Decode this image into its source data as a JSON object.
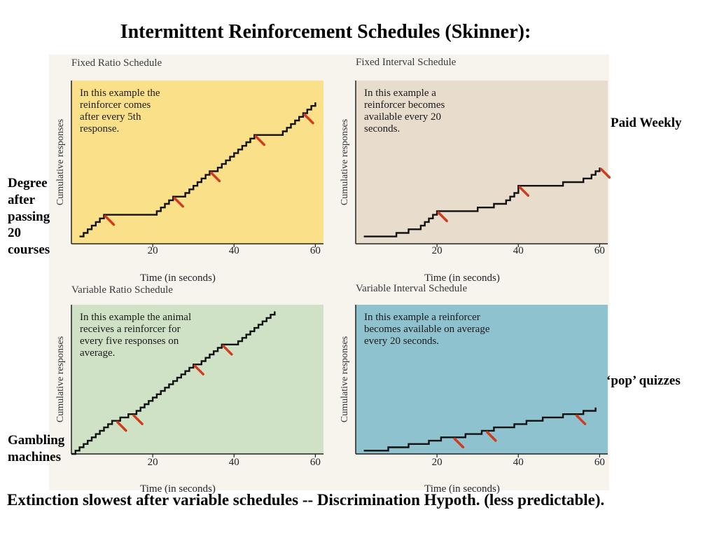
{
  "slide": {
    "title": "Intermittent Reinforcement Schedules (Skinner):",
    "annotations": {
      "paid_weekly": "Paid Weekly",
      "degree": [
        "Degree",
        "after",
        "passing",
        "20",
        "courses"
      ],
      "pop_quizzes": "‘pop’ quizzes",
      "gambling": [
        "Gambling",
        "machines"
      ]
    },
    "footer": "Extinction slowest after variable schedules -- Discrimination Hypoth. (less predictable)."
  },
  "colors": {
    "fixed_ratio_bg": "#fbe08a",
    "fixed_interval_bg": "#e8dccd",
    "variable_ratio_bg": "#cfe2c6",
    "variable_interval_bg": "#8fc2cf",
    "line": "#111111",
    "reinforcer": "#d23a1e"
  },
  "chart_data": [
    {
      "type": "line",
      "title": "Fixed Ratio Schedule",
      "xlabel": "Time (in seconds)",
      "ylabel": "Cumulative responses",
      "xticks": [
        20,
        40,
        60
      ],
      "xlim": [
        0,
        62
      ],
      "ylim": [
        0,
        45
      ],
      "annotation": "In this example the reinforcer comes after every 5th response.",
      "points": [
        [
          2,
          2
        ],
        [
          3,
          3
        ],
        [
          4,
          4
        ],
        [
          5,
          5
        ],
        [
          6,
          6
        ],
        [
          7,
          7
        ],
        [
          8,
          8
        ],
        [
          20,
          8
        ],
        [
          21,
          9
        ],
        [
          22,
          10
        ],
        [
          23,
          11
        ],
        [
          24,
          12
        ],
        [
          25,
          13
        ],
        [
          27,
          13
        ],
        [
          28,
          14
        ],
        [
          29,
          15
        ],
        [
          30,
          16
        ],
        [
          31,
          17
        ],
        [
          32,
          18
        ],
        [
          33,
          19
        ],
        [
          34,
          20
        ],
        [
          35,
          20
        ],
        [
          36,
          21
        ],
        [
          37,
          22
        ],
        [
          38,
          23
        ],
        [
          39,
          24
        ],
        [
          40,
          25
        ],
        [
          41,
          26
        ],
        [
          42,
          27
        ],
        [
          43,
          28
        ],
        [
          44,
          29
        ],
        [
          45,
          30
        ],
        [
          51,
          30
        ],
        [
          52,
          31
        ],
        [
          53,
          32
        ],
        [
          54,
          33
        ],
        [
          55,
          34
        ],
        [
          56,
          35
        ],
        [
          57,
          36
        ],
        [
          58,
          37
        ],
        [
          59,
          38
        ],
        [
          60,
          39
        ]
      ],
      "reinforcers": [
        8,
        25,
        34,
        45,
        57
      ]
    },
    {
      "type": "line",
      "title": "Fixed Interval Schedule",
      "xlabel": "Time (in seconds)",
      "ylabel": "Cumulative responses",
      "xticks": [
        20,
        40,
        60
      ],
      "xlim": [
        0,
        62
      ],
      "ylim": [
        0,
        45
      ],
      "annotation": "In this example a reinforcer becomes available every 20 seconds.",
      "points": [
        [
          2,
          2
        ],
        [
          9,
          2
        ],
        [
          10,
          3
        ],
        [
          12,
          3
        ],
        [
          13,
          4
        ],
        [
          15,
          4
        ],
        [
          16,
          5
        ],
        [
          17,
          6
        ],
        [
          18,
          7
        ],
        [
          19,
          8
        ],
        [
          20,
          9
        ],
        [
          29,
          9
        ],
        [
          30,
          10
        ],
        [
          33,
          10
        ],
        [
          34,
          11
        ],
        [
          36,
          11
        ],
        [
          37,
          12
        ],
        [
          38,
          13
        ],
        [
          39,
          14
        ],
        [
          40,
          16
        ],
        [
          50,
          16
        ],
        [
          51,
          17
        ],
        [
          55,
          17
        ],
        [
          56,
          18
        ],
        [
          58,
          19
        ],
        [
          59,
          20
        ],
        [
          60,
          21
        ]
      ],
      "reinforcers": [
        20,
        40,
        60
      ]
    },
    {
      "type": "line",
      "title": "Variable Ratio Schedule",
      "xlabel": "Time (in seconds)",
      "ylabel": "Cumulative responses",
      "xticks": [
        20,
        40,
        60
      ],
      "xlim": [
        0,
        62
      ],
      "ylim": [
        0,
        45
      ],
      "annotation": "In this example the animal receives a reinforcer for every five responses on average.",
      "points": [
        [
          0,
          0
        ],
        [
          1,
          1
        ],
        [
          2,
          2
        ],
        [
          3,
          3
        ],
        [
          4,
          4
        ],
        [
          5,
          5
        ],
        [
          6,
          6
        ],
        [
          7,
          7
        ],
        [
          8,
          8
        ],
        [
          9,
          9
        ],
        [
          10,
          10
        ],
        [
          11,
          10
        ],
        [
          12,
          11
        ],
        [
          13,
          11
        ],
        [
          14,
          12
        ],
        [
          15,
          12
        ],
        [
          16,
          13
        ],
        [
          17,
          14
        ],
        [
          18,
          15
        ],
        [
          19,
          16
        ],
        [
          20,
          17
        ],
        [
          21,
          18
        ],
        [
          22,
          19
        ],
        [
          23,
          20
        ],
        [
          24,
          21
        ],
        [
          25,
          22
        ],
        [
          26,
          23
        ],
        [
          27,
          24
        ],
        [
          28,
          25
        ],
        [
          29,
          26
        ],
        [
          30,
          27
        ],
        [
          31,
          27
        ],
        [
          32,
          28
        ],
        [
          33,
          29
        ],
        [
          34,
          30
        ],
        [
          35,
          31
        ],
        [
          36,
          32
        ],
        [
          37,
          33
        ],
        [
          40,
          33
        ],
        [
          41,
          34
        ],
        [
          42,
          35
        ],
        [
          43,
          36
        ],
        [
          44,
          37
        ],
        [
          45,
          38
        ],
        [
          46,
          39
        ],
        [
          47,
          40
        ],
        [
          48,
          41
        ],
        [
          49,
          42
        ],
        [
          50,
          43
        ]
      ],
      "reinforcers": [
        11,
        15,
        30,
        37
      ]
    },
    {
      "type": "line",
      "title": "Variable Interval Schedule",
      "xlabel": "Time (in seconds)",
      "ylabel": "Cumulative responses",
      "xticks": [
        20,
        40,
        60
      ],
      "xlim": [
        0,
        62
      ],
      "ylim": [
        0,
        45
      ],
      "annotation": "In this example a reinforcer becomes available on average every 20 seconds.",
      "points": [
        [
          2,
          1
        ],
        [
          7,
          1
        ],
        [
          8,
          2
        ],
        [
          12,
          2
        ],
        [
          13,
          3
        ],
        [
          17,
          3
        ],
        [
          18,
          4
        ],
        [
          20,
          4
        ],
        [
          21,
          5
        ],
        [
          26,
          5
        ],
        [
          27,
          6
        ],
        [
          30,
          6
        ],
        [
          31,
          7
        ],
        [
          33,
          7
        ],
        [
          34,
          8
        ],
        [
          38,
          8
        ],
        [
          39,
          9
        ],
        [
          41,
          9
        ],
        [
          42,
          10
        ],
        [
          45,
          10
        ],
        [
          46,
          11
        ],
        [
          50,
          11
        ],
        [
          51,
          12
        ],
        [
          55,
          12
        ],
        [
          56,
          13
        ],
        [
          58,
          13
        ],
        [
          59,
          14
        ]
      ],
      "reinforcers": [
        24,
        32,
        54
      ]
    }
  ]
}
